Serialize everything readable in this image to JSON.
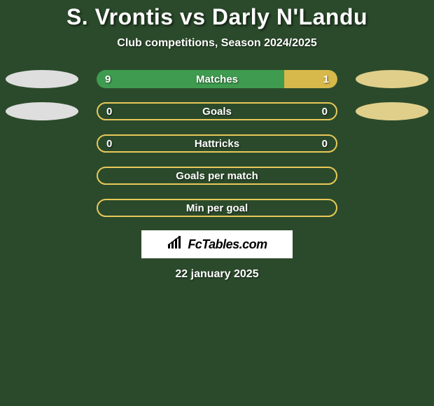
{
  "background_color": "#2b4a2b",
  "title": "S. Vrontis vs Darly N'Landu",
  "subtitle": "Club competitions, Season 2024/2025",
  "date": "22 january 2025",
  "logo_text": "FcTables.com",
  "colors": {
    "player1": "#dedede",
    "player2": "#e0cf8a",
    "bar_green": "#3e9b4f",
    "bar_yellow": "#d7b84a",
    "border_yellow": "#e8c95a"
  },
  "rows": [
    {
      "label": "Matches",
      "left_value": "9",
      "right_value": "1",
      "left_ratio": 0.78,
      "right_ratio": 0.22,
      "left_ellipse": true,
      "right_ellipse": true,
      "style": "split"
    },
    {
      "label": "Goals",
      "left_value": "0",
      "right_value": "0",
      "left_ratio": 0,
      "right_ratio": 0,
      "left_ellipse": true,
      "right_ellipse": true,
      "style": "outline"
    },
    {
      "label": "Hattricks",
      "left_value": "0",
      "right_value": "0",
      "left_ratio": 0,
      "right_ratio": 0,
      "left_ellipse": false,
      "right_ellipse": false,
      "style": "outline"
    },
    {
      "label": "Goals per match",
      "left_value": "",
      "right_value": "",
      "left_ratio": 0,
      "right_ratio": 0,
      "left_ellipse": false,
      "right_ellipse": false,
      "style": "outline"
    },
    {
      "label": "Min per goal",
      "left_value": "",
      "right_value": "",
      "left_ratio": 0,
      "right_ratio": 0,
      "left_ellipse": false,
      "right_ellipse": false,
      "style": "outline"
    }
  ]
}
